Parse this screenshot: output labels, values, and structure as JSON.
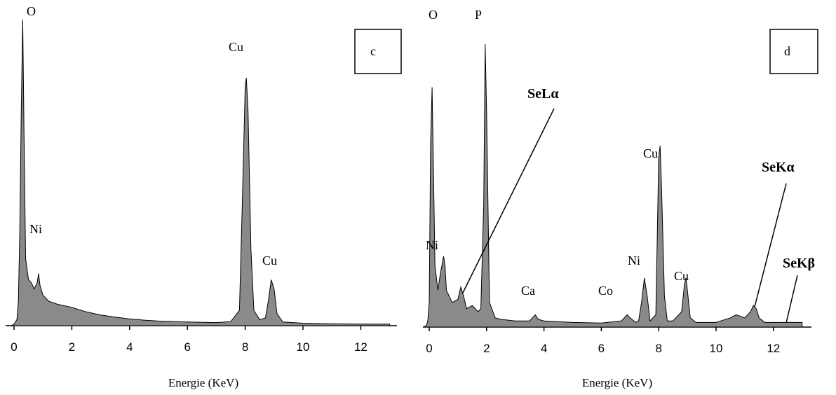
{
  "chart_data": [
    {
      "type": "area",
      "panel_label": "c",
      "xlabel": "Energie (KeV)",
      "ylabel": "",
      "xlim": [
        -0.3,
        13.2
      ],
      "ylim": [
        0,
        100
      ],
      "xticks": [
        0,
        2,
        4,
        6,
        8,
        10,
        12
      ],
      "grid": false,
      "peaks": [
        {
          "label": "O",
          "x": 0.28,
          "height": 100
        },
        {
          "label": "Ni",
          "x": 0.85,
          "height": 17
        },
        {
          "label": "Cu",
          "x": 8.04,
          "height": 81
        },
        {
          "label": "Cu",
          "x": 8.9,
          "height": 15
        }
      ],
      "spectrum": {
        "x": [
          -0.1,
          0.0,
          0.1,
          0.15,
          0.2,
          0.25,
          0.3,
          0.35,
          0.4,
          0.5,
          0.6,
          0.7,
          0.8,
          0.85,
          0.9,
          1.0,
          1.2,
          1.5,
          2.0,
          2.5,
          3.0,
          3.5,
          4.0,
          4.5,
          5.0,
          6.0,
          7.0,
          7.5,
          7.8,
          7.9,
          8.0,
          8.04,
          8.1,
          8.2,
          8.3,
          8.5,
          8.7,
          8.8,
          8.9,
          9.0,
          9.1,
          9.3,
          10.0,
          11.0,
          12.0,
          13.0
        ],
        "y": [
          0,
          0.5,
          2,
          8,
          30,
          70,
          100,
          60,
          22,
          15,
          14,
          12,
          14,
          17,
          13,
          10,
          8,
          7,
          6,
          4.5,
          3.5,
          2.8,
          2.2,
          1.8,
          1.5,
          1.2,
          1.0,
          1.3,
          5,
          40,
          78,
          81,
          70,
          25,
          5,
          2,
          2.5,
          8,
          15,
          12,
          4,
          1.2,
          0.8,
          0.6,
          0.5,
          0.5
        ]
      }
    },
    {
      "type": "area",
      "panel_label": "d",
      "xlabel": "Energie (KeV)",
      "ylabel": "",
      "xlim": [
        -0.3,
        13.2
      ],
      "ylim": [
        0,
        100
      ],
      "xticks": [
        0,
        2,
        4,
        6,
        8,
        10,
        12
      ],
      "grid": false,
      "peaks": [
        {
          "label": "O",
          "x": 0.05,
          "height": 78
        },
        {
          "label": "P",
          "x": 1.95,
          "height": 92
        },
        {
          "label": "Ni",
          "x": 0.5,
          "height": 23
        },
        {
          "label": "Ca",
          "x": 3.7,
          "height": 4
        },
        {
          "label": "Co",
          "x": 6.95,
          "height": 4
        },
        {
          "label": "Ni",
          "x": 7.5,
          "height": 16
        },
        {
          "label": "Cu",
          "x": 8.05,
          "height": 59
        },
        {
          "label": "Cu",
          "x": 8.95,
          "height": 16
        }
      ],
      "annotations": [
        "SeLα",
        "SeKα",
        "SeKβ"
      ],
      "spectrum": {
        "x": [
          -0.2,
          -0.1,
          -0.05,
          0.0,
          0.05,
          0.1,
          0.15,
          0.2,
          0.3,
          0.4,
          0.5,
          0.55,
          0.6,
          0.8,
          1.0,
          1.1,
          1.2,
          1.3,
          1.5,
          1.7,
          1.8,
          1.9,
          1.95,
          2.0,
          2.1,
          2.3,
          2.5,
          3.0,
          3.5,
          3.6,
          3.7,
          3.8,
          4.0,
          5.0,
          6.0,
          6.7,
          6.9,
          7.0,
          7.2,
          7.3,
          7.4,
          7.5,
          7.6,
          7.7,
          7.9,
          8.0,
          8.05,
          8.1,
          8.2,
          8.3,
          8.5,
          8.8,
          8.9,
          8.95,
          9.0,
          9.1,
          9.3,
          10.0,
          10.5,
          10.7,
          11.0,
          11.2,
          11.3,
          11.4,
          11.5,
          11.7,
          12.0,
          13.0
        ],
        "y": [
          0,
          0.5,
          2,
          8,
          60,
          78,
          50,
          20,
          12,
          18,
          23,
          20,
          12,
          8,
          9,
          13,
          10,
          6,
          7,
          5,
          6,
          40,
          92,
          70,
          8,
          3,
          2.5,
          2,
          2,
          3,
          4,
          2.5,
          2,
          1.5,
          1.3,
          2,
          4,
          3,
          1.5,
          2,
          8,
          16,
          10,
          2,
          4,
          55,
          59,
          45,
          10,
          2,
          2,
          5,
          14,
          16,
          12,
          3,
          1.5,
          1.5,
          3,
          4,
          3,
          5,
          7,
          6,
          3,
          1.5,
          1.5,
          1.5
        ]
      }
    }
  ]
}
